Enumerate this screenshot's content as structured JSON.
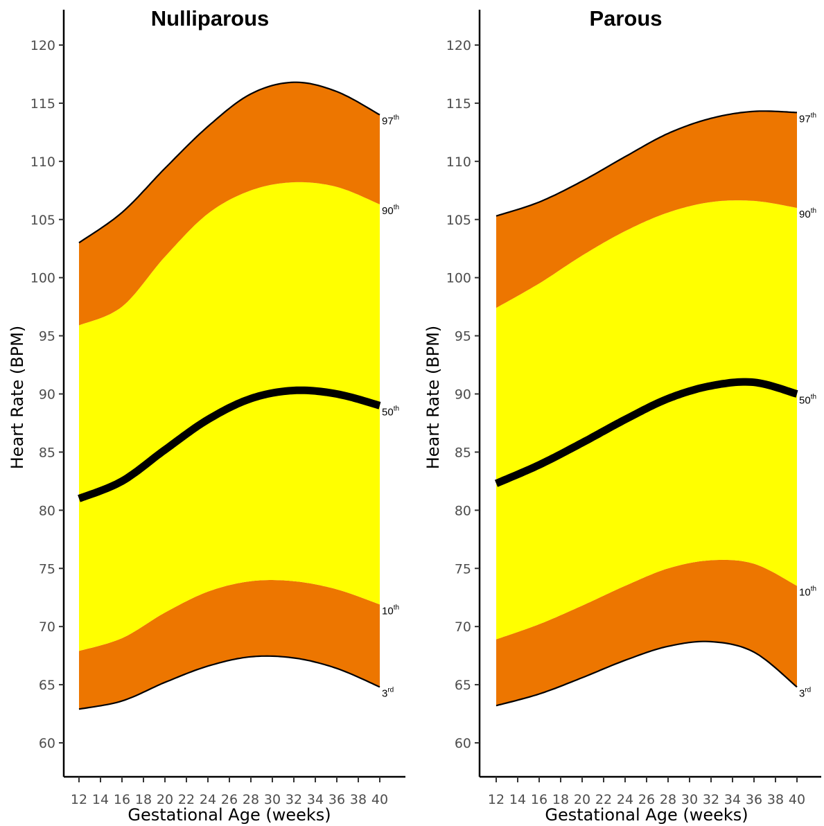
{
  "chart_data": [
    {
      "type": "area",
      "title": "Nulliparous",
      "xlabel": "Gestational Age (weeks)",
      "ylabel": "Heart Rate (BPM)",
      "xlim": [
        12,
        40
      ],
      "ylim": [
        57,
        121
      ],
      "xticks": [
        12,
        14,
        16,
        18,
        20,
        22,
        24,
        26,
        28,
        30,
        32,
        34,
        36,
        38,
        40
      ],
      "yticks": [
        60,
        65,
        70,
        75,
        80,
        85,
        90,
        95,
        100,
        105,
        110,
        115,
        120
      ],
      "x": [
        12,
        16,
        20,
        24,
        28,
        32,
        36,
        40
      ],
      "series": [
        {
          "name": "3rd",
          "label_base": "3",
          "label_sup": "rd",
          "values": [
            62.9,
            63.6,
            65.2,
            66.6,
            67.4,
            67.3,
            66.4,
            64.8
          ]
        },
        {
          "name": "10th",
          "label_base": "10",
          "label_sup": "th",
          "values": [
            67.9,
            69.0,
            71.2,
            73.0,
            73.9,
            73.9,
            73.2,
            71.9
          ]
        },
        {
          "name": "50th",
          "label_base": "50",
          "label_sup": "th",
          "values": [
            81.0,
            82.5,
            85.2,
            87.8,
            89.6,
            90.3,
            90.0,
            89.0
          ]
        },
        {
          "name": "90th",
          "label_base": "90",
          "label_sup": "th",
          "values": [
            95.9,
            97.5,
            101.8,
            105.5,
            107.5,
            108.2,
            107.8,
            106.3
          ]
        },
        {
          "name": "97th",
          "label_base": "97",
          "label_sup": "th",
          "values": [
            103.0,
            105.6,
            109.4,
            113.0,
            115.8,
            116.8,
            116.0,
            114.0
          ]
        }
      ]
    },
    {
      "type": "area",
      "title": "Parous",
      "xlabel": "Gestational Age (weeks)",
      "ylabel": "Heart Rate (BPM)",
      "xlim": [
        12,
        40
      ],
      "ylim": [
        57,
        121
      ],
      "xticks": [
        12,
        14,
        16,
        18,
        20,
        22,
        24,
        26,
        28,
        30,
        32,
        34,
        36,
        38,
        40
      ],
      "yticks": [
        60,
        65,
        70,
        75,
        80,
        85,
        90,
        95,
        100,
        105,
        110,
        115,
        120
      ],
      "x": [
        12,
        16,
        20,
        24,
        28,
        32,
        36,
        40
      ],
      "series": [
        {
          "name": "3rd",
          "label_base": "3",
          "label_sup": "rd",
          "values": [
            63.2,
            64.2,
            65.6,
            67.1,
            68.3,
            68.7,
            67.8,
            64.8
          ]
        },
        {
          "name": "10th",
          "label_base": "10",
          "label_sup": "th",
          "values": [
            68.9,
            70.2,
            71.8,
            73.5,
            75.0,
            75.7,
            75.4,
            73.5
          ]
        },
        {
          "name": "50th",
          "label_base": "50",
          "label_sup": "th",
          "values": [
            82.3,
            83.9,
            85.8,
            87.8,
            89.6,
            90.7,
            91.0,
            90.0
          ]
        },
        {
          "name": "90th",
          "label_base": "90",
          "label_sup": "th",
          "values": [
            97.4,
            99.5,
            101.9,
            104.0,
            105.6,
            106.5,
            106.6,
            106.0
          ]
        },
        {
          "name": "97th",
          "label_base": "97",
          "label_sup": "th",
          "values": [
            105.3,
            106.5,
            108.3,
            110.4,
            112.4,
            113.7,
            114.3,
            114.2
          ]
        }
      ]
    }
  ],
  "colors": {
    "outer_band": "#ED7600",
    "inner_band": "#FFFF00",
    "median_line": "#000000"
  }
}
